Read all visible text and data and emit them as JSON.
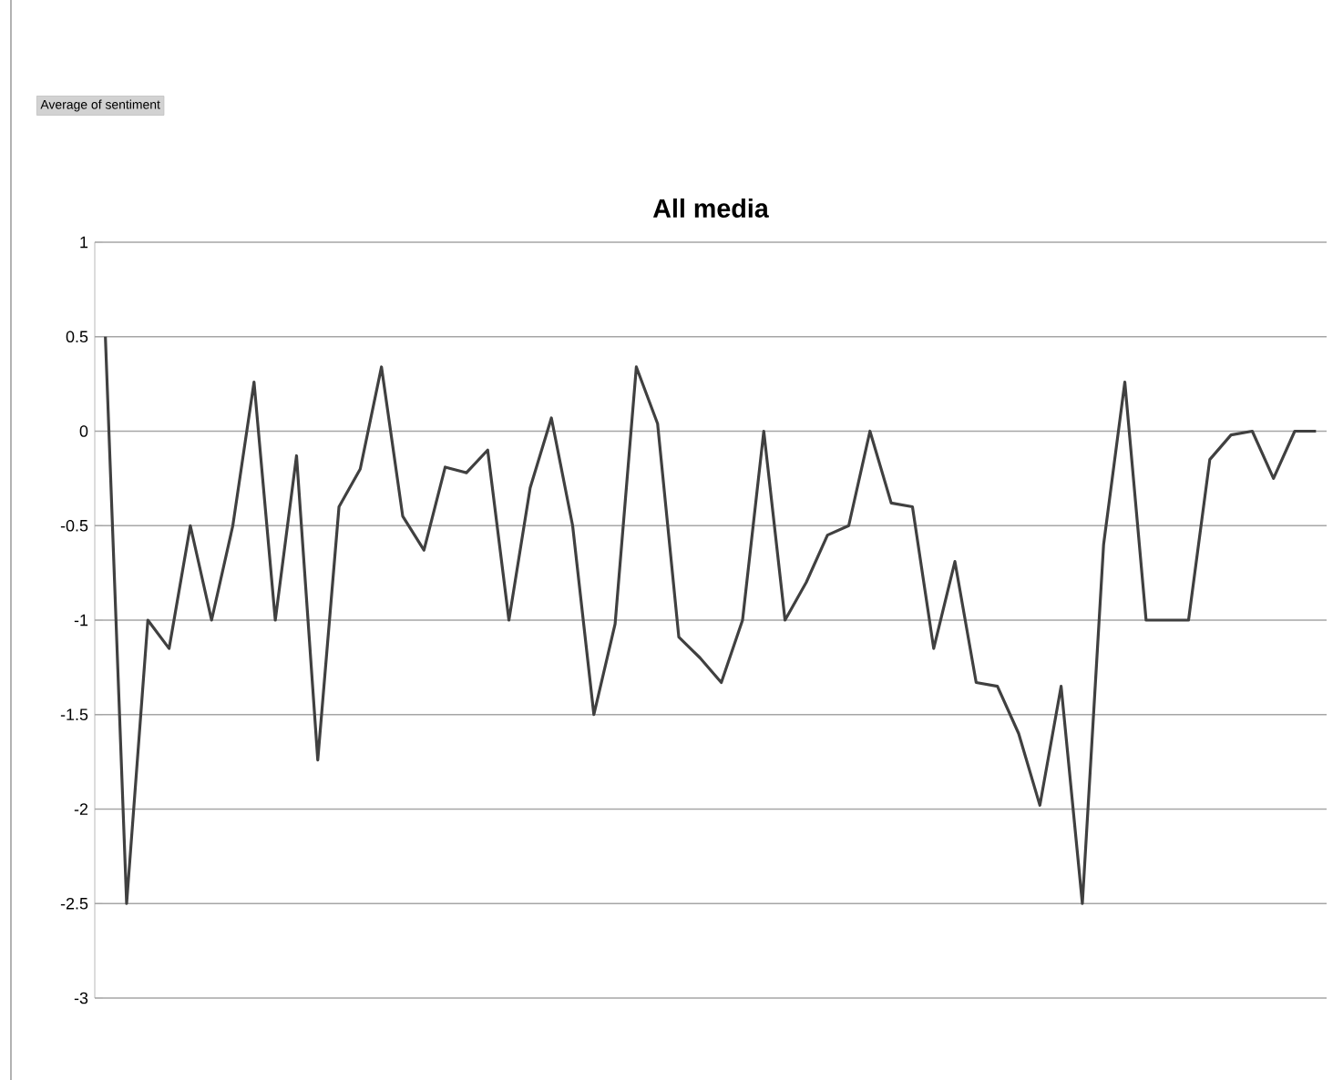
{
  "chart_data": {
    "type": "line",
    "title": "All media",
    "annotations": [
      "Average of sentiment"
    ],
    "categories": [
      null,
      null,
      null,
      null,
      null,
      null,
      null,
      null,
      null,
      null,
      null,
      null,
      null,
      null,
      null,
      null,
      null,
      null,
      null,
      null,
      null,
      null,
      null,
      null,
      null,
      null,
      null,
      null,
      null,
      null,
      null,
      null,
      null,
      null,
      null,
      null,
      null,
      null,
      null,
      null,
      null,
      null,
      null,
      null,
      null,
      null,
      null,
      null,
      null,
      null,
      null,
      null,
      null,
      null,
      null,
      null,
      null,
      null
    ],
    "series": [
      {
        "color": "#404040",
        "values": [
          0.5,
          -2.5,
          -1,
          -1.15,
          -0.5,
          -1,
          -0.5,
          0.26,
          -1,
          -0.13,
          -1.74,
          -0.4,
          -0.2,
          0.34,
          -0.45,
          -0.63,
          -0.19,
          -0.22,
          -0.1,
          -1,
          -0.3,
          0.07,
          -0.5,
          -1.5,
          -1.02,
          0.34,
          0.04,
          -1.09,
          -1.2,
          -1.33,
          -1,
          0,
          -1,
          -0.8,
          -0.55,
          -0.5,
          0,
          -0.38,
          -0.4,
          -1.15,
          -0.69,
          -1.33,
          -1.35,
          -1.6,
          -1.98,
          -1.35,
          -2.5,
          -0.6,
          0.26,
          -1,
          -1,
          -1,
          -0.15,
          -0.02,
          0,
          -0.25,
          0,
          0
        ]
      }
    ],
    "ylim": [
      -3,
      1
    ],
    "yticks": [
      -3,
      -2.5,
      -2,
      -1.5,
      -1,
      -0.5,
      0,
      0.5,
      1
    ],
    "grid": "y",
    "marker": "none",
    "line_style": "solid"
  }
}
